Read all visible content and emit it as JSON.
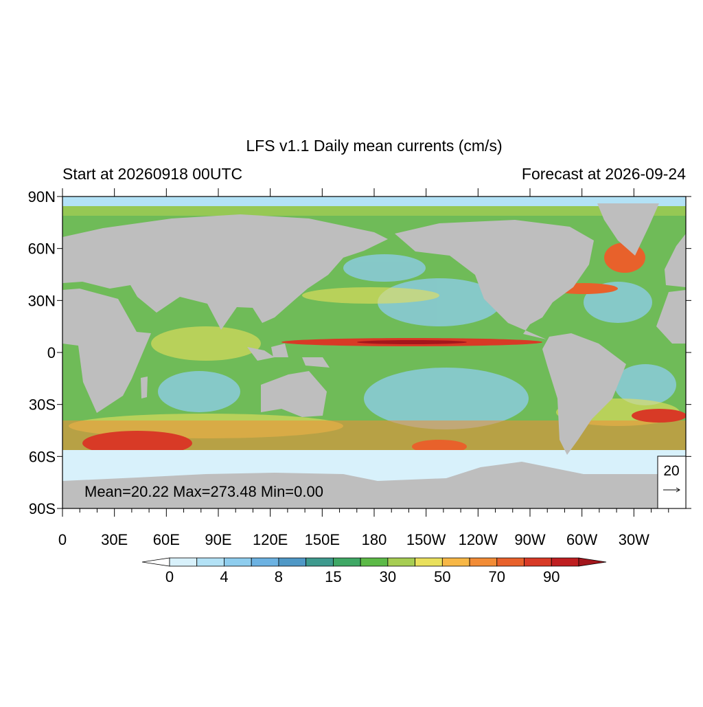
{
  "header": {
    "title": "LFS v1.1 Daily mean currents (cm/s)",
    "left": "Start at 20260918 00UTC",
    "right": "Forecast at 2026-09-24"
  },
  "axes": {
    "lat_labels": [
      "90N",
      "60N",
      "30N",
      "0",
      "30S",
      "60S",
      "90S"
    ],
    "lon_labels": [
      "0",
      "30E",
      "60E",
      "90E",
      "120E",
      "150E",
      "180",
      "150W",
      "120W",
      "90W",
      "60W",
      "30W"
    ]
  },
  "stats": "Mean=20.22  Max=273.48  Min=0.00",
  "reference_vector": "20",
  "colorbar": {
    "labels": [
      "0",
      "4",
      "8",
      "15",
      "30",
      "50",
      "70",
      "90"
    ],
    "colors": [
      "#d8f1fb",
      "#b3e2f6",
      "#8ecdee",
      "#6cb2e2",
      "#4f98c6",
      "#3e9a8e",
      "#3fa865",
      "#5cba47",
      "#a6cd52",
      "#e9e05c",
      "#f7b746",
      "#f28c36",
      "#e8612b",
      "#d83a26",
      "#bf1e20"
    ],
    "under_color": "#ffffff",
    "over_color": "#a3161c"
  }
}
